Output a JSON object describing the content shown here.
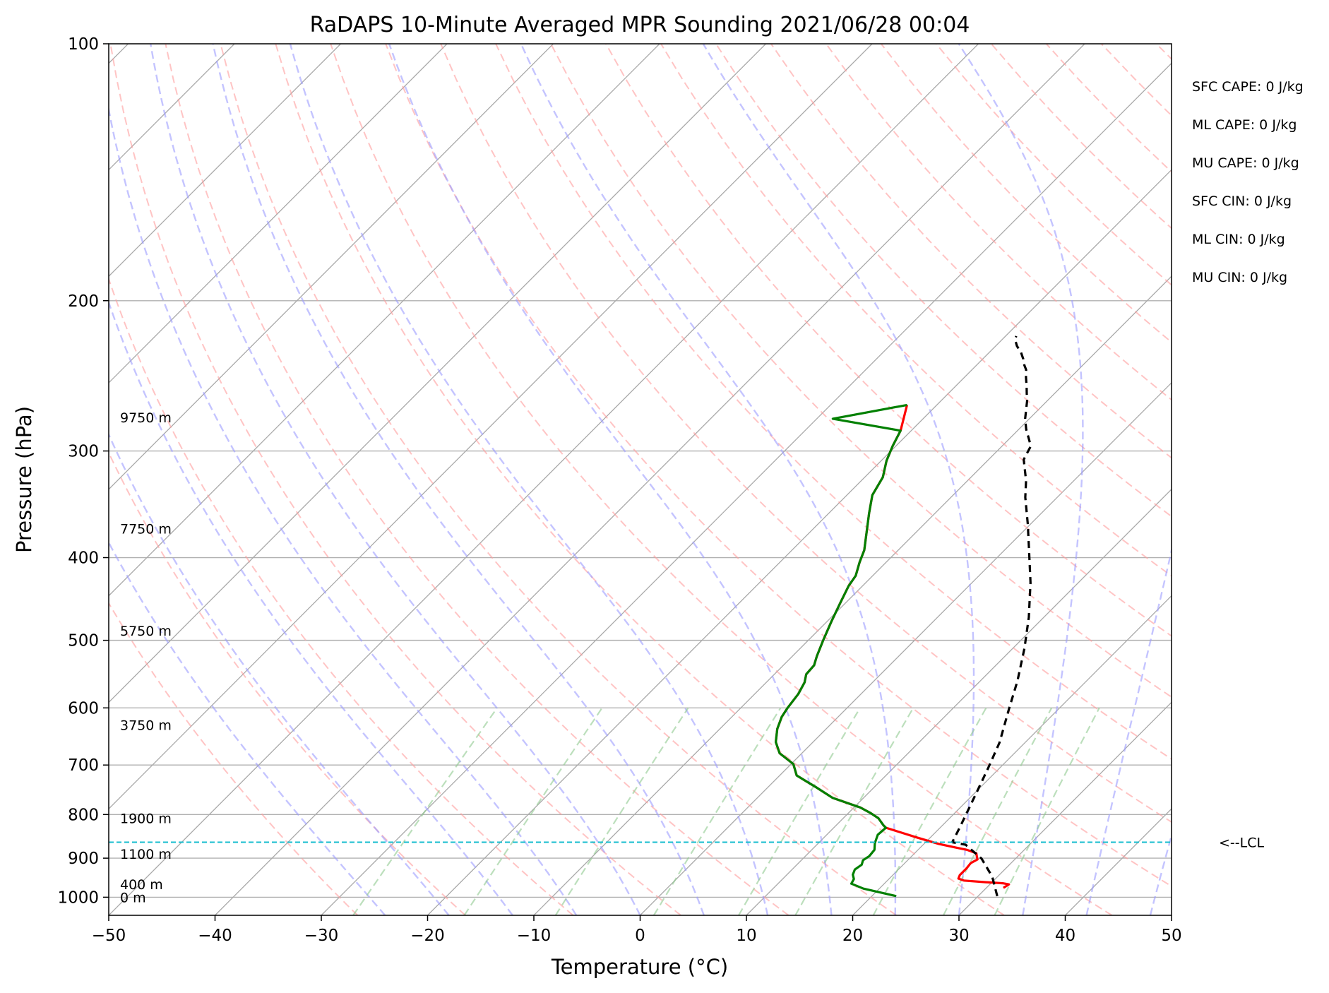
{
  "chart_data": {
    "type": "line",
    "title": "RaDAPS 10-Minute Averaged MPR Sounding 2021/06/28 00:04",
    "xlabel": "Temperature (°C)",
    "ylabel": "Pressure (hPa)",
    "xlim": [
      -50,
      50
    ],
    "ylim": [
      1050,
      100
    ],
    "y_scale": "log",
    "skew": true,
    "xticks": [
      -50,
      -40,
      -30,
      -20,
      -10,
      0,
      10,
      20,
      30,
      40,
      50
    ],
    "xtick_labels": [
      "−50",
      "−40",
      "−30",
      "−20",
      "−10",
      "0",
      "10",
      "20",
      "30",
      "40",
      "50"
    ],
    "yticks": [
      100,
      200,
      300,
      400,
      500,
      600,
      700,
      800,
      900,
      1000
    ],
    "ytick_labels": [
      "100",
      "200",
      "300",
      "400",
      "500",
      "600",
      "700",
      "800",
      "900",
      "1000"
    ],
    "grid": true,
    "series": [
      {
        "role": "temperature",
        "color": "#ff0000",
        "points": [
          [
            -22.8,
            265
          ],
          [
            -21.0,
            284
          ],
          [
            -20.3,
            296
          ],
          [
            -19.5,
            308
          ],
          [
            -18.3,
            322
          ],
          [
            -17.6,
            338
          ],
          [
            -16.2,
            355
          ],
          [
            -14.7,
            373
          ],
          [
            -13.2,
            392
          ],
          [
            -12.5,
            405
          ],
          [
            -11.6,
            420
          ],
          [
            -11.3,
            432
          ],
          [
            -10.5,
            452
          ],
          [
            -9.6,
            475
          ],
          [
            -8.6,
            500
          ],
          [
            -7.7,
            522
          ],
          [
            -7.1,
            535
          ],
          [
            -7.0,
            548
          ],
          [
            -6.4,
            560
          ],
          [
            -5.9,
            578
          ],
          [
            -5.6,
            600
          ],
          [
            -5.3,
            615
          ],
          [
            -4.6,
            635
          ],
          [
            -3.5,
            658
          ],
          [
            -2.1,
            678
          ],
          [
            0.2,
            698
          ],
          [
            1.6,
            720
          ],
          [
            4.5,
            743
          ],
          [
            7.1,
            765
          ],
          [
            10.6,
            785
          ],
          [
            12.1,
            797
          ],
          [
            13.3,
            808
          ],
          [
            14.4,
            823
          ],
          [
            14.9,
            829
          ],
          [
            18.7,
            851
          ],
          [
            20.3,
            860
          ],
          [
            21.4,
            866
          ],
          [
            23.2,
            874
          ],
          [
            24.6,
            880
          ],
          [
            25.8,
            888
          ],
          [
            26.3,
            899
          ],
          [
            26.5,
            903
          ],
          [
            26.2,
            912
          ],
          [
            26.3,
            925
          ],
          [
            26.3,
            942
          ],
          [
            26.5,
            951
          ],
          [
            27.2,
            956
          ],
          [
            29.3,
            960
          ],
          [
            31.1,
            963
          ],
          [
            31.8,
            966
          ],
          [
            31.6,
            975
          ]
        ]
      },
      {
        "role": "dewpoint",
        "color": "#008000",
        "points": [
          [
            -22.8,
            265
          ],
          [
            -28.5,
            275
          ],
          [
            -21.0,
            284
          ],
          [
            -20.3,
            296
          ],
          [
            -19.5,
            308
          ],
          [
            -18.3,
            322
          ],
          [
            -17.6,
            338
          ],
          [
            -16.2,
            355
          ],
          [
            -14.7,
            373
          ],
          [
            -13.2,
            392
          ],
          [
            -12.5,
            405
          ],
          [
            -11.6,
            420
          ],
          [
            -11.3,
            432
          ],
          [
            -10.5,
            452
          ],
          [
            -9.6,
            475
          ],
          [
            -8.6,
            500
          ],
          [
            -7.7,
            522
          ],
          [
            -7.1,
            535
          ],
          [
            -7.0,
            548
          ],
          [
            -6.4,
            560
          ],
          [
            -5.9,
            578
          ],
          [
            -5.6,
            600
          ],
          [
            -5.3,
            615
          ],
          [
            -4.6,
            635
          ],
          [
            -3.5,
            658
          ],
          [
            -2.1,
            678
          ],
          [
            0.2,
            698
          ],
          [
            1.6,
            720
          ],
          [
            4.5,
            743
          ],
          [
            7.1,
            765
          ],
          [
            10.6,
            785
          ],
          [
            12.1,
            797
          ],
          [
            13.3,
            808
          ],
          [
            14.4,
            823
          ],
          [
            14.9,
            829
          ],
          [
            14.8,
            845
          ],
          [
            15.3,
            864
          ],
          [
            15.9,
            880
          ],
          [
            16.0,
            895
          ],
          [
            15.8,
            905
          ],
          [
            16.1,
            916
          ],
          [
            15.9,
            928
          ],
          [
            16.2,
            941
          ],
          [
            16.7,
            952
          ],
          [
            16.9,
            964
          ],
          [
            18.5,
            977
          ],
          [
            22.3,
            997
          ]
        ]
      },
      {
        "role": "parcel",
        "color": "#000000",
        "points": [
          [
            31.8,
            997
          ],
          [
            29.5,
            946
          ],
          [
            26.8,
            901
          ],
          [
            24.0,
            868
          ],
          [
            22.5,
            862
          ],
          [
            21.8,
            827
          ],
          [
            20.2,
            757
          ],
          [
            18.9,
            705
          ],
          [
            17.6,
            659
          ],
          [
            15.3,
            601
          ],
          [
            13.5,
            558
          ],
          [
            11.1,
            511
          ],
          [
            8.6,
            470
          ],
          [
            5.5,
            428
          ],
          [
            2.4,
            393
          ],
          [
            -0.3,
            365
          ],
          [
            -3.0,
            340
          ],
          [
            -4.5,
            325
          ],
          [
            -6.7,
            307
          ],
          [
            -7.3,
            296
          ],
          [
            -9.3,
            283
          ],
          [
            -10.4,
            275
          ],
          [
            -11.2,
            268
          ],
          [
            -11.9,
            262
          ],
          [
            -12.6,
            257
          ],
          [
            -13.3,
            252
          ],
          [
            -14.2,
            246
          ],
          [
            -14.9,
            241
          ],
          [
            -15.5,
            238
          ],
          [
            -16.2,
            234
          ],
          [
            -17.0,
            230
          ],
          [
            -18.0,
            226
          ],
          [
            -18.8,
            222
          ],
          [
            -19.0,
            220
          ]
        ]
      }
    ],
    "lcl_pressure": 862,
    "lcl_label": "<--LCL",
    "height_labels": [
      {
        "text": "9750 m",
        "p": 274
      },
      {
        "text": "7750 m",
        "p": 370
      },
      {
        "text": "5750 m",
        "p": 487
      },
      {
        "text": "3750 m",
        "p": 628
      },
      {
        "text": "1900 m",
        "p": 808
      },
      {
        "text": "1100 m",
        "p": 890
      },
      {
        "text": "400 m",
        "p": 966
      },
      {
        "text": "0 m",
        "p": 1000
      }
    ],
    "indices": [
      "SFC CAPE: 0 J/kg",
      "ML CAPE: 0 J/kg",
      "MU CAPE: 0 J/kg",
      "SFC CIN: 0 J/kg",
      "ML CIN: 0 J/kg",
      "MU CIN: 0 J/kg"
    ],
    "background_lines": {
      "isotherms": "gray solid",
      "dry_adiabats": "light red dashed",
      "moist_adiabats": "light blue dashed",
      "mixing_ratio_lines": "light green dashed"
    }
  }
}
